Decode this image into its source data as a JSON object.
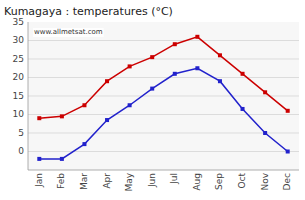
{
  "chart_data": {
    "type": "line",
    "title": "Kumagaya : temperatures (°C)",
    "categories": [
      "Jan",
      "Feb",
      "Mar",
      "Apr",
      "May",
      "Jun",
      "Jul",
      "Aug",
      "Sep",
      "Oct",
      "Nov",
      "Dec"
    ],
    "series": [
      {
        "color": "#cc0000",
        "marker": "square",
        "values": [
          9.0,
          9.5,
          12.5,
          19.0,
          23.0,
          25.5,
          29.0,
          31.0,
          26.0,
          21.0,
          16.0,
          11.0
        ]
      },
      {
        "color": "#2222cc",
        "marker": "square",
        "values": [
          -2.0,
          -2.0,
          2.0,
          8.5,
          12.5,
          17.0,
          21.0,
          22.5,
          19.0,
          11.5,
          5.0,
          0.0
        ]
      }
    ],
    "ylim": [
      -5,
      35
    ],
    "yticks": [
      0,
      5,
      10,
      15,
      20,
      25,
      30
    ],
    "grid": true,
    "annotations": [
      {
        "text": "35",
        "y": 35
      },
      {
        "text": "www.allmetsat.com"
      }
    ]
  }
}
